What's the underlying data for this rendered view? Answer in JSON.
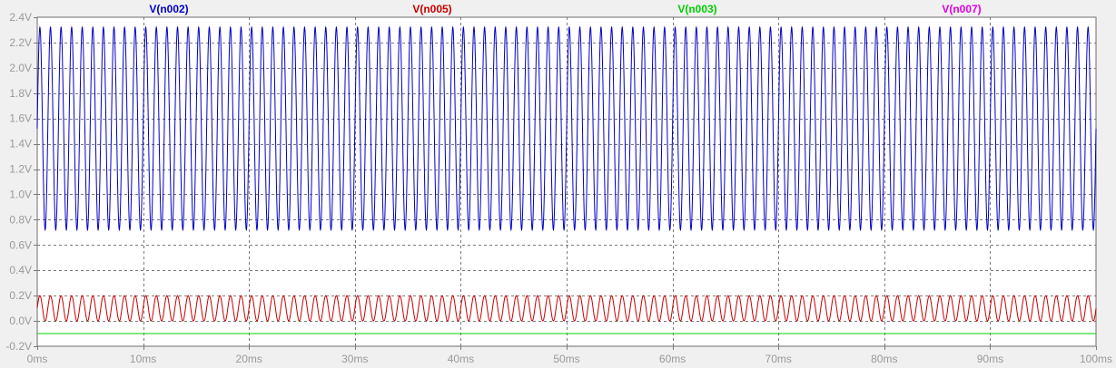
{
  "chart_data": {
    "type": "line",
    "title": "",
    "xlabel": "",
    "ylabel": "",
    "xlim": [
      0,
      100
    ],
    "ylim": [
      -0.2,
      2.4
    ],
    "x_unit": "ms",
    "x_ticks": [
      0,
      10,
      20,
      30,
      40,
      50,
      60,
      70,
      80,
      90,
      100
    ],
    "x_tick_labels": [
      "0ms",
      "10ms",
      "20ms",
      "30ms",
      "40ms",
      "50ms",
      "60ms",
      "70ms",
      "80ms",
      "90ms",
      "100ms"
    ],
    "y_ticks": [
      -0.2,
      0.0,
      0.2,
      0.4,
      0.6,
      0.8,
      1.0,
      1.2,
      1.4,
      1.6,
      1.8,
      2.0,
      2.2,
      2.4
    ],
    "y_tick_labels": [
      "-0.2V",
      "0.0V",
      "0.2V",
      "0.4V",
      "0.6V",
      "0.8V",
      "1.0V",
      "1.2V",
      "1.4V",
      "1.6V",
      "1.8V",
      "2.0V",
      "2.2V",
      "2.4V"
    ],
    "grid": true,
    "legend_position": "top",
    "series": [
      {
        "name": "V(n002)",
        "color": "#0000c8",
        "waveform": "sine",
        "offset": 1.52,
        "amplitude": 0.8,
        "cycles": 100,
        "phase": 0
      },
      {
        "name": "V(n005)",
        "color": "#c80000",
        "waveform": "sine",
        "offset": 0.1,
        "amplitude": 0.1,
        "cycles": 100,
        "phase": 0
      },
      {
        "name": "V(n003)",
        "color": "#00d000",
        "waveform": "constant",
        "value": -0.1
      },
      {
        "name": "V(n007)",
        "color": "#e000e0",
        "waveform": "hidden"
      }
    ]
  }
}
